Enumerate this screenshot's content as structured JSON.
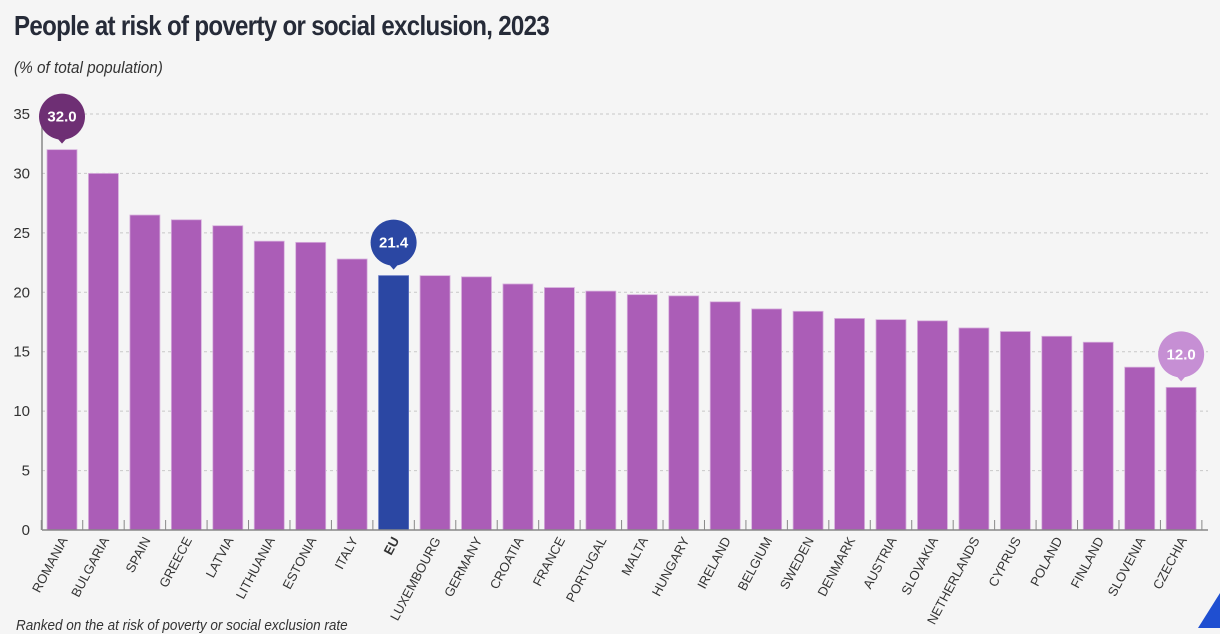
{
  "header": {
    "title": "People at risk of poverty or social exclusion, 2023",
    "subtitle": "(% of total population)"
  },
  "footnote": "Ranked on the at risk of poverty or social exclusion rate",
  "colors": {
    "bar": "#ab5db7",
    "eu_bar": "#2b47a3",
    "highlight_max": "#6e2f74",
    "highlight_min": "#c68fd4",
    "grid": "#c8c8c8",
    "axis": "#888888"
  },
  "chart_data": {
    "type": "bar",
    "title": "People at risk of poverty or social exclusion, 2023",
    "subtitle": "(% of total population)",
    "xlabel": "",
    "ylabel": "% of total population",
    "ylim": [
      0,
      35
    ],
    "yticks": [
      0,
      5,
      10,
      15,
      20,
      25,
      30,
      35
    ],
    "grid": true,
    "categories": [
      "ROMANIA",
      "BULGARIA",
      "SPAIN",
      "GREECE",
      "LATVIA",
      "LITHUANIA",
      "ESTONIA",
      "ITALY",
      "EU",
      "LUXEMBOURG",
      "GERMANY",
      "CROATIA",
      "FRANCE",
      "PORTUGAL",
      "MALTA",
      "HUNGARY",
      "IRELAND",
      "BELGIUM",
      "SWEDEN",
      "DENMARK",
      "AUSTRIA",
      "SLOVAKIA",
      "NETHERLANDS",
      "CYPRUS",
      "POLAND",
      "FINLAND",
      "SLOVENIA",
      "CZECHIA"
    ],
    "values": [
      32.0,
      30.0,
      26.5,
      26.1,
      25.6,
      24.3,
      24.2,
      22.8,
      21.4,
      21.4,
      21.3,
      20.7,
      20.4,
      20.1,
      19.8,
      19.7,
      19.2,
      18.6,
      18.4,
      17.8,
      17.7,
      17.6,
      17.0,
      16.7,
      16.3,
      15.8,
      13.7,
      12.0
    ],
    "highlighted_category": "EU",
    "annotations": [
      {
        "category": "ROMANIA",
        "label": "32.0",
        "style": "max"
      },
      {
        "category": "EU",
        "label": "21.4",
        "style": "eu"
      },
      {
        "category": "CZECHIA",
        "label": "12.0",
        "style": "min"
      }
    ]
  }
}
